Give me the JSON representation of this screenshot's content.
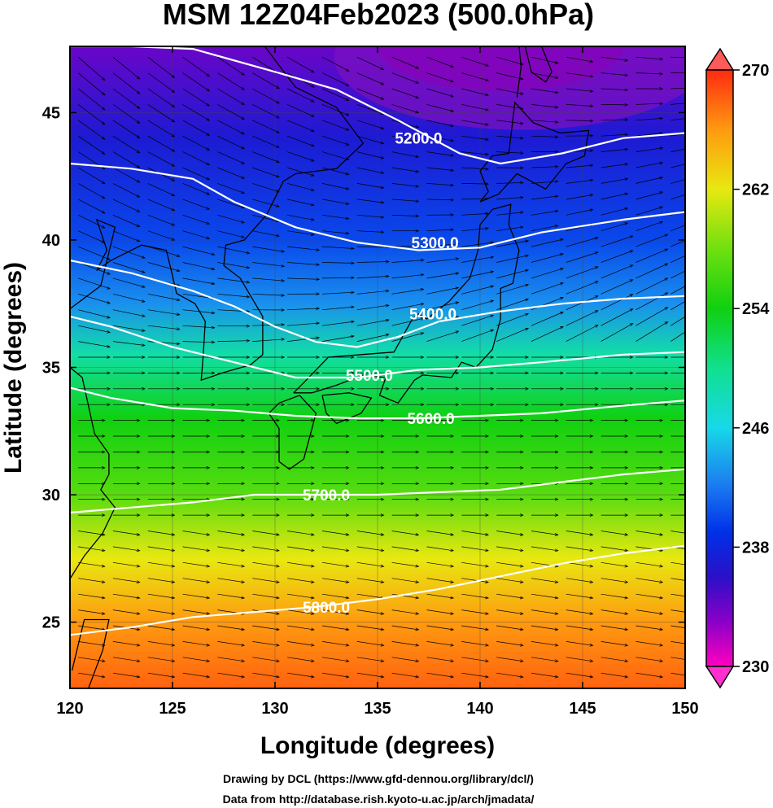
{
  "chart_data": {
    "type": "heatmap",
    "title": "MSM 12Z04Feb2023 (500.0hPa)",
    "xlabel": "Longitude (degrees)",
    "ylabel": "Latitude  (degrees)",
    "xlim": [
      120,
      150
    ],
    "ylim": [
      22.4,
      47.6
    ],
    "x_ticks": [
      120,
      125,
      130,
      135,
      140,
      145,
      150
    ],
    "y_ticks": [
      25,
      30,
      35,
      40,
      45
    ],
    "grid": true,
    "shaded_field": {
      "colorbar_range": [
        230,
        270
      ],
      "colorbar_ticks": [
        230,
        238,
        246,
        254,
        262,
        270
      ],
      "colors": [
        {
          "value": 230,
          "color": "#ff00c0"
        },
        {
          "value": 233,
          "color": "#8a00c8"
        },
        {
          "value": 236,
          "color": "#2a10c8"
        },
        {
          "value": 239,
          "color": "#0030e8"
        },
        {
          "value": 242,
          "color": "#1a78f0"
        },
        {
          "value": 246,
          "color": "#18d8e8"
        },
        {
          "value": 250,
          "color": "#10e090"
        },
        {
          "value": 254,
          "color": "#10d010"
        },
        {
          "value": 258,
          "color": "#70e010"
        },
        {
          "value": 262,
          "color": "#e8e810"
        },
        {
          "value": 266,
          "color": "#ff9a10"
        },
        {
          "value": 270,
          "color": "#ff2a10"
        }
      ],
      "field_rows": [
        {
          "lat": 47.6,
          "value": 234
        },
        {
          "lat": 44.0,
          "value": 237
        },
        {
          "lat": 40.0,
          "value": 240
        },
        {
          "lat": 37.5,
          "value": 243
        },
        {
          "lat": 35.5,
          "value": 249
        },
        {
          "lat": 33.0,
          "value": 254
        },
        {
          "lat": 30.0,
          "value": 257
        },
        {
          "lat": 27.5,
          "value": 262
        },
        {
          "lat": 25.0,
          "value": 266
        },
        {
          "lat": 22.4,
          "value": 268
        }
      ]
    },
    "contours": [
      {
        "label": "5200.0",
        "value": 5200,
        "label_lon": 137.0,
        "label_lat": 44.0,
        "points": [
          [
            120,
            47.6
          ],
          [
            123,
            47.6
          ],
          [
            126,
            47.5
          ],
          [
            130,
            46.6
          ],
          [
            133,
            45.9
          ],
          [
            136,
            44.7
          ],
          [
            139,
            43.4
          ],
          [
            141,
            43.0
          ],
          [
            144,
            43.4
          ],
          [
            147,
            44.0
          ],
          [
            150,
            44.2
          ]
        ]
      },
      {
        "label": "5300.0",
        "value": 5300,
        "label_lon": 137.8,
        "label_lat": 39.9,
        "points": [
          [
            120,
            43.0
          ],
          [
            123,
            42.8
          ],
          [
            126,
            42.4
          ],
          [
            128,
            41.5
          ],
          [
            131,
            40.5
          ],
          [
            134,
            39.9
          ],
          [
            137,
            39.6
          ],
          [
            140,
            39.7
          ],
          [
            143,
            40.3
          ],
          [
            147,
            40.8
          ],
          [
            150,
            41.1
          ]
        ]
      },
      {
        "label": "5400.0",
        "value": 5400,
        "label_lon": 137.7,
        "label_lat": 37.1,
        "points": [
          [
            120,
            39.2
          ],
          [
            123,
            38.7
          ],
          [
            126,
            38.0
          ],
          [
            128,
            37.4
          ],
          [
            130,
            36.6
          ],
          [
            132,
            36.0
          ],
          [
            134,
            35.8
          ],
          [
            136,
            36.2
          ],
          [
            138,
            36.8
          ],
          [
            141,
            37.2
          ],
          [
            144,
            37.5
          ],
          [
            147,
            37.7
          ],
          [
            150,
            37.8
          ]
        ]
      },
      {
        "label": "5500.0",
        "value": 5500,
        "label_lon": 134.6,
        "label_lat": 34.7,
        "points": [
          [
            120,
            37.0
          ],
          [
            122,
            36.6
          ],
          [
            125,
            35.8
          ],
          [
            128,
            35.2
          ],
          [
            131,
            34.6
          ],
          [
            134,
            34.6
          ],
          [
            137,
            34.9
          ],
          [
            140,
            35.0
          ],
          [
            143,
            35.2
          ],
          [
            147,
            35.5
          ],
          [
            150,
            35.6
          ]
        ]
      },
      {
        "label": "5600.0",
        "value": 5600,
        "label_lon": 137.6,
        "label_lat": 33.0,
        "points": [
          [
            120,
            34.2
          ],
          [
            122,
            33.8
          ],
          [
            125,
            33.4
          ],
          [
            128,
            33.3
          ],
          [
            131,
            33.1
          ],
          [
            134,
            33.0
          ],
          [
            137,
            33.0
          ],
          [
            140,
            33.1
          ],
          [
            143,
            33.2
          ],
          [
            147,
            33.5
          ],
          [
            150,
            33.7
          ]
        ]
      },
      {
        "label": "5700.0",
        "value": 5700,
        "label_lon": 132.5,
        "label_lat": 30.0,
        "points": [
          [
            120,
            29.3
          ],
          [
            123,
            29.5
          ],
          [
            126,
            29.7
          ],
          [
            129,
            30.0
          ],
          [
            132,
            30.0
          ],
          [
            135,
            30.0
          ],
          [
            138,
            30.1
          ],
          [
            141,
            30.2
          ],
          [
            144,
            30.5
          ],
          [
            147,
            30.8
          ],
          [
            150,
            31.0
          ]
        ]
      },
      {
        "label": "5800.0",
        "value": 5800,
        "label_lon": 132.5,
        "label_lat": 25.6,
        "points": [
          [
            120,
            24.5
          ],
          [
            123,
            24.8
          ],
          [
            126,
            25.2
          ],
          [
            129,
            25.4
          ],
          [
            132,
            25.6
          ],
          [
            135,
            25.9
          ],
          [
            138,
            26.3
          ],
          [
            141,
            26.8
          ],
          [
            144,
            27.3
          ],
          [
            147,
            27.7
          ],
          [
            150,
            28.0
          ]
        ]
      }
    ],
    "wind_vectors": {
      "style": "streamline-arrows",
      "color": "#000000",
      "direction": "westerly"
    },
    "coastlines": true
  },
  "footer": {
    "line1": "Drawing by DCL (https://www.gfd-dennou.org/library/dcl/)",
    "line2": "Data from http://database.rish.kyoto-u.ac.jp/arch/jmadata/"
  }
}
